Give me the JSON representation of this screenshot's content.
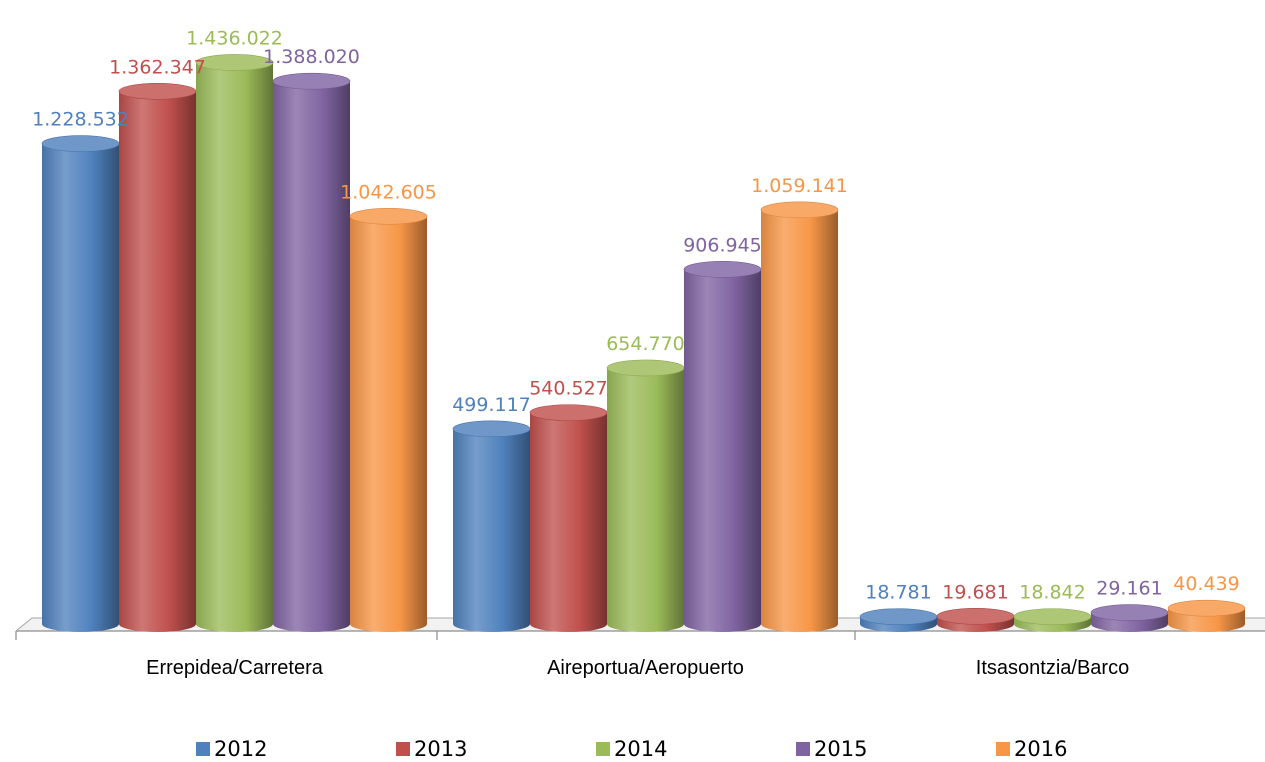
{
  "chart_data": {
    "type": "bar",
    "style": "3d-cylinder",
    "title": "",
    "xlabel": "",
    "ylabel": "",
    "ylim": [
      0,
      1450000
    ],
    "grid": false,
    "legend_position": "bottom",
    "number_format": "thousands separator '.'",
    "categories": [
      "Errepidea/Carretera",
      "Aireportua/Aeropuerto",
      "Itsasontzia/Barco"
    ],
    "series": [
      {
        "name": "2012",
        "color": "#4F81BD",
        "values": [
          1228532,
          499117,
          18781
        ],
        "labels": [
          "1.228.532",
          "499.117",
          "18.781"
        ]
      },
      {
        "name": "2013",
        "color": "#C0504D",
        "values": [
          1362347,
          540527,
          19681
        ],
        "labels": [
          "1.362.347",
          "540.527",
          "19.681"
        ]
      },
      {
        "name": "2014",
        "color": "#9BBB59",
        "values": [
          1436022,
          654770,
          18842
        ],
        "labels": [
          "1.436.022",
          "654.770",
          "18.842"
        ]
      },
      {
        "name": "2015",
        "color": "#8064A2",
        "values": [
          1388020,
          906945,
          29161
        ],
        "labels": [
          "1.388.020",
          "906.945",
          "29.161"
        ]
      },
      {
        "name": "2016",
        "color": "#F79646",
        "values": [
          1042605,
          1059141,
          40439
        ],
        "labels": [
          "1.042.605",
          "1.059.141",
          "40.439"
        ]
      }
    ]
  }
}
